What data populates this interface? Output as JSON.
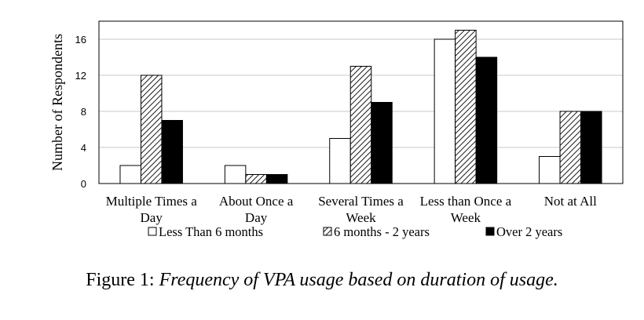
{
  "chart_data": {
    "type": "bar",
    "categories": [
      [
        "Multiple Times a",
        "Day"
      ],
      [
        "About Once a",
        "Day"
      ],
      [
        "Several Times a",
        "Week"
      ],
      [
        "Less than Once a",
        "Week"
      ],
      [
        "Not at All"
      ]
    ],
    "series": [
      {
        "name": "Less Than 6 months",
        "values": [
          2,
          2,
          5,
          16,
          3
        ],
        "fill": "#ffffff"
      },
      {
        "name": "6 months - 2 years",
        "values": [
          12,
          1,
          13,
          17,
          8
        ],
        "fill": "hatch"
      },
      {
        "name": "Over 2 years",
        "values": [
          7,
          1,
          9,
          14,
          8
        ],
        "fill": "#000000"
      }
    ],
    "ylabel": "Number of Respondents",
    "ylim": [
      0,
      18
    ],
    "yticks": [
      0,
      4,
      8,
      12,
      16
    ],
    "grid": true,
    "legend_position": "bottom"
  },
  "caption": {
    "prefix": "Figure 1: ",
    "text": "Frequency of VPA usage based on duration of usage."
  }
}
